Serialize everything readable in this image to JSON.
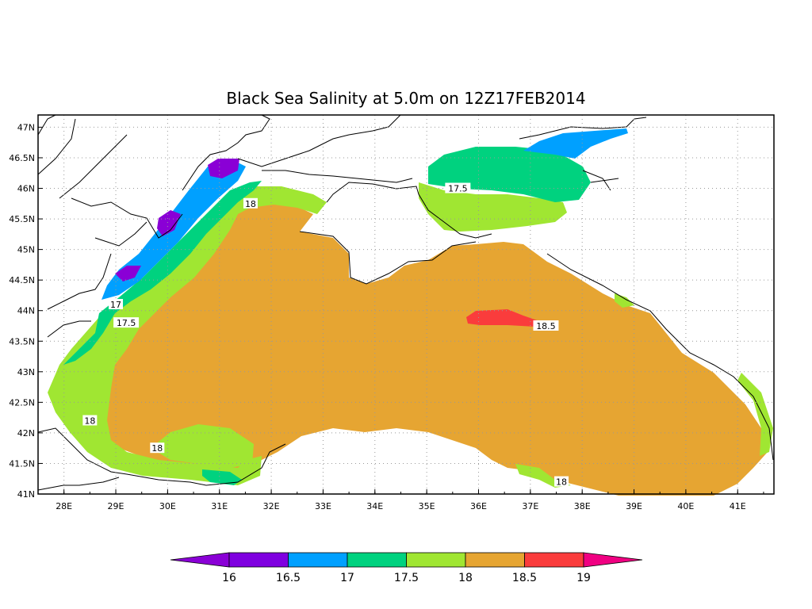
{
  "title": "Black Sea Salinity at 5.0m on 12Z17FEB2014",
  "axes": {
    "lat_ticks": [
      "47N",
      "46.5N",
      "46N",
      "45.5N",
      "45N",
      "44.5N",
      "44N",
      "43.5N",
      "43N",
      "42.5N",
      "42N",
      "41.5N",
      "41N"
    ],
    "lon_ticks": [
      "28E",
      "29E",
      "30E",
      "31E",
      "32E",
      "33E",
      "34E",
      "35E",
      "36E",
      "37E",
      "38E",
      "39E",
      "40E",
      "41E"
    ],
    "lon_range": [
      27.5,
      41.7
    ],
    "lat_range": [
      41.0,
      47.2
    ],
    "grid": "dotted"
  },
  "contour_labels": [
    {
      "text": "18",
      "lon": 31.6,
      "lat": 45.75
    },
    {
      "text": "17.5",
      "lon": 35.6,
      "lat": 46.0
    },
    {
      "text": "17",
      "lon": 29.0,
      "lat": 44.1
    },
    {
      "text": "17.5",
      "lon": 29.2,
      "lat": 43.8
    },
    {
      "text": "18.5",
      "lon": 37.3,
      "lat": 43.75
    },
    {
      "text": "18",
      "lon": 28.5,
      "lat": 42.2
    },
    {
      "text": "18",
      "lon": 29.8,
      "lat": 41.75
    },
    {
      "text": "18",
      "lon": 37.6,
      "lat": 41.2
    }
  ],
  "colorbar": {
    "levels": [
      "16",
      "16.5",
      "17",
      "17.5",
      "18",
      "18.5",
      "19"
    ],
    "colors": [
      "#8a00d6",
      "#7f00e0",
      "#00a0ff",
      "#00d27f",
      "#a0e632",
      "#e6a532",
      "#fa3c3c",
      "#f00082"
    ]
  }
}
